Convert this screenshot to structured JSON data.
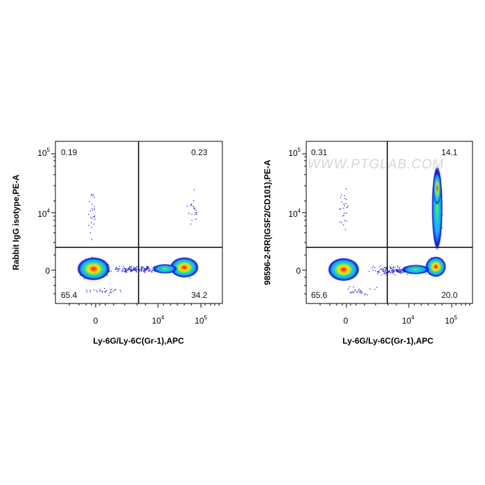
{
  "watermark": "WWW.PTGLAB.COM",
  "colors": {
    "frame": "#000000",
    "gate": "#000000",
    "dot_sparse": "#1b1bd6",
    "density": [
      "#1414c8",
      "#1aa3ff",
      "#15d0c0",
      "#8ee33a",
      "#ffe21a",
      "#ff7a10",
      "#e01010"
    ]
  },
  "chart_data": [
    {
      "type": "scatter",
      "subtype": "flow-cytometry-density-dot-plot",
      "title": "",
      "xlabel": "Ly-6G/Ly-6C(Gr-1),APC",
      "ylabel": "Rabbit IgG isotype,PE-A",
      "x_scale": "biexponential",
      "y_scale": "biexponential",
      "x_ticks": [
        {
          "base": "0",
          "exp": ""
        },
        {
          "base": "10",
          "exp": "4"
        },
        {
          "base": "10",
          "exp": "5"
        }
      ],
      "y_ticks": [
        {
          "base": "0",
          "exp": ""
        },
        {
          "base": "10",
          "exp": "4"
        },
        {
          "base": "10",
          "exp": "5"
        }
      ],
      "quadrant_percentages": {
        "upper_left": "0.19",
        "upper_right": "0.23",
        "lower_left": "65.4",
        "lower_right": "34.2"
      },
      "populations": [
        "Gr-1 negative, PE negative",
        "Gr-1 positive, PE negative"
      ],
      "grid": false,
      "legend": "none"
    },
    {
      "type": "scatter",
      "subtype": "flow-cytometry-density-dot-plot",
      "title": "",
      "xlabel": "Ly-6G/Ly-6C(Gr-1),APC",
      "ylabel": "98596-2-RR(IGSF2/CD101),PE-A",
      "x_scale": "biexponential",
      "y_scale": "biexponential",
      "x_ticks": [
        {
          "base": "0",
          "exp": ""
        },
        {
          "base": "10",
          "exp": "4"
        },
        {
          "base": "10",
          "exp": "5"
        }
      ],
      "y_ticks": [
        {
          "base": "0",
          "exp": ""
        },
        {
          "base": "10",
          "exp": "4"
        },
        {
          "base": "10",
          "exp": "5"
        }
      ],
      "quadrant_percentages": {
        "upper_left": "0.31",
        "upper_right": "14.1",
        "lower_left": "65.6",
        "lower_right": "20.0"
      },
      "populations": [
        "Gr-1 negative, CD101 negative",
        "Gr-1 positive, CD101 negative",
        "Gr-1 positive, CD101 positive"
      ],
      "grid": false,
      "legend": "none"
    }
  ]
}
